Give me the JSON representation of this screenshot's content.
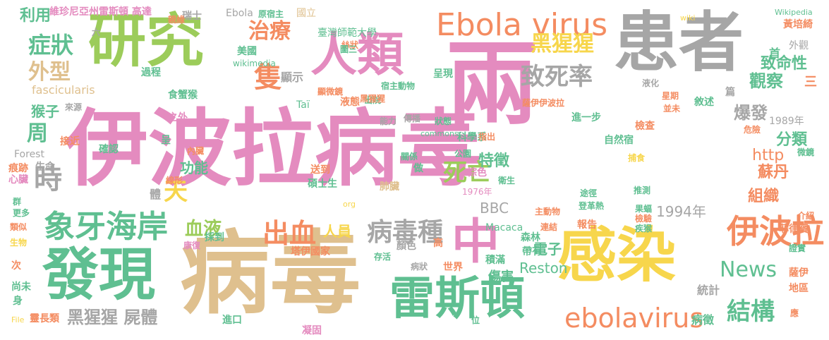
{
  "words": [
    {
      "text": "伊波拉病毒",
      "color": "#e48bbf"
    },
    {
      "text": "病毒",
      "color": "#dfc08e"
    },
    {
      "text": "兩",
      "color": "#e48bbf"
    },
    {
      "text": "患者",
      "color": "#a6a6a6"
    },
    {
      "text": "研究",
      "color": "#9ccc5a"
    },
    {
      "text": "感染",
      "color": "#f7d64c"
    },
    {
      "text": "發現",
      "color": "#5fbf91"
    },
    {
      "text": "人類",
      "color": "#e48bbf"
    },
    {
      "text": "雷斯頓",
      "color": "#5fbf91"
    },
    {
      "text": "Ebola virus",
      "color": "#f48c61"
    },
    {
      "text": "中",
      "color": "#e48bbf"
    },
    {
      "text": "伊波拉",
      "color": "#f48c61"
    },
    {
      "text": "象牙海岸",
      "color": "#5fbf91"
    },
    {
      "text": "出血",
      "color": "#f48c61"
    },
    {
      "text": "病毒種",
      "color": "#a6a6a6"
    },
    {
      "text": "ebolavirus",
      "color": "#f48c61"
    },
    {
      "text": "致死率",
      "color": "#a6a6a6"
    },
    {
      "text": "黑猩猩",
      "color": "#f7d64c"
    },
    {
      "text": "治療",
      "color": "#f48c61"
    },
    {
      "text": "隻",
      "color": "#f48c61"
    },
    {
      "text": "死亡",
      "color": "#9ccc5a"
    },
    {
      "text": "News",
      "color": "#5fbf91"
    },
    {
      "text": "結構",
      "color": "#5fbf91"
    },
    {
      "text": "症狀",
      "color": "#5fbf91"
    },
    {
      "text": "外型",
      "color": "#dfc08e"
    },
    {
      "text": "時",
      "color": "#a6a6a6"
    },
    {
      "text": "天",
      "color": "#f7d64c"
    },
    {
      "text": "周",
      "color": "#5fbf91"
    },
    {
      "text": "黑猩猩 屍體",
      "color": "#a6a6a6"
    },
    {
      "text": "血液",
      "color": "#9ccc5a"
    },
    {
      "text": "人員",
      "color": "#f7d64c"
    },
    {
      "text": "特徵",
      "color": "#5fbf91"
    },
    {
      "text": "致命性",
      "color": "#5fbf91"
    },
    {
      "text": "觀察",
      "color": "#5fbf91"
    },
    {
      "text": "爆發",
      "color": "#a6a6a6"
    },
    {
      "text": "分類",
      "color": "#5fbf91"
    },
    {
      "text": "http",
      "color": "#f48c61"
    },
    {
      "text": "蘇丹",
      "color": "#f48c61"
    },
    {
      "text": "組織",
      "color": "#f48c61"
    },
    {
      "text": "1994年",
      "color": "#a6a6a6"
    },
    {
      "text": "BBC",
      "color": "#a6a6a6"
    },
    {
      "text": "Reston",
      "color": "#5fbf91"
    },
    {
      "text": "傷害",
      "color": "#5fbf91"
    },
    {
      "text": "電子",
      "color": "#5fbf91"
    },
    {
      "text": "猴子",
      "color": "#5fbf91"
    },
    {
      "text": "功能",
      "color": "#5fbf91"
    },
    {
      "text": "利用",
      "color": "#5fbf91"
    },
    {
      "text": "維珍尼亞州雷斯頓 高達",
      "color": "#e48bbf"
    },
    {
      "text": "臺灣師範大學",
      "color": "#5fbf91"
    },
    {
      "text": "國立",
      "color": "#dfc08e"
    },
    {
      "text": "外觀",
      "color": "#a6a6a6"
    },
    {
      "text": "黃培綺",
      "color": "#f48c61"
    },
    {
      "text": "Wikipedia",
      "color": "#5fbf91"
    },
    {
      "text": "fascicularis",
      "color": "#dfc08e"
    },
    {
      "text": "wikimedia",
      "color": "#5fbf91"
    },
    {
      "text": "美國",
      "color": "#5fbf91"
    },
    {
      "text": "顯示",
      "color": "#a6a6a6"
    },
    {
      "text": "1989年",
      "color": "#a6a6a6"
    },
    {
      "text": "塔伊國家",
      "color": "#f48c61"
    },
    {
      "text": "碩士生",
      "color": "#5fbf91"
    },
    {
      "text": "1976年",
      "color": "#e48bbf"
    },
    {
      "text": "Macaca",
      "color": "#5fbf91"
    },
    {
      "text": "肺臟",
      "color": "#dfc08e"
    },
    {
      "text": "統計",
      "color": "#a6a6a6"
    },
    {
      "text": "地區",
      "color": "#f48c61"
    },
    {
      "text": "薩伊",
      "color": "#f48c61"
    },
    {
      "text": "菲律賓",
      "color": "#f48c61"
    },
    {
      "text": "病徵",
      "color": "#5fbf91"
    },
    {
      "text": "進口",
      "color": "#5fbf91"
    },
    {
      "text": "凝固",
      "color": "#e48bbf"
    },
    {
      "text": "靈長類",
      "color": "#f48c61"
    },
    {
      "text": "森林",
      "color": "#5fbf91"
    },
    {
      "text": "積滿",
      "color": "#5fbf91"
    },
    {
      "text": "世界",
      "color": "#f48c61"
    },
    {
      "text": "帶有",
      "color": "#5fbf91"
    },
    {
      "text": "報告",
      "color": "#f48c61"
    },
    {
      "text": "康復",
      "color": "#e48bbf"
    },
    {
      "text": "採到",
      "color": "#5fbf91"
    },
    {
      "text": "內臟",
      "color": "#f48c61"
    },
    {
      "text": "確認",
      "color": "#5fbf91"
    },
    {
      "text": "生命",
      "color": "#a6a6a6"
    },
    {
      "text": "痕跡",
      "color": "#f48c61"
    },
    {
      "text": "心臟",
      "color": "#e48bbf"
    },
    {
      "text": "Forest",
      "color": "#a6a6a6"
    },
    {
      "text": "接近",
      "color": "#f48c61"
    },
    {
      "text": "來源",
      "color": "#a6a6a6"
    },
    {
      "text": "食蟹猴",
      "color": "#5fbf91"
    },
    {
      "text": "過程",
      "color": "#5fbf91"
    },
    {
      "text": "顯微鏡",
      "color": "#f48c61"
    },
    {
      "text": "宿主動物",
      "color": "#5fbf91"
    },
    {
      "text": "薩伊伊波拉",
      "color": "#f48c61"
    },
    {
      "text": "進一步",
      "color": "#5fbf91"
    },
    {
      "text": "危險",
      "color": "#f48c61"
    },
    {
      "text": "星期",
      "color": "#f48c61"
    },
    {
      "text": "並未",
      "color": "#f48c61"
    },
    {
      "text": "檢查",
      "color": "#f48c61"
    },
    {
      "text": "自然宿",
      "color": "#5fbf91"
    },
    {
      "text": "捕食",
      "color": "#f7d64c"
    },
    {
      "text": "推測",
      "color": "#5fbf91"
    },
    {
      "text": "途徑",
      "color": "#5fbf91"
    },
    {
      "text": "登革熱",
      "color": "#5fbf91"
    },
    {
      "text": "主動物",
      "color": "#f48c61"
    },
    {
      "text": "連結",
      "color": "#f48c61"
    },
    {
      "text": "疾猴",
      "color": "#5fbf91"
    },
    {
      "text": "果蝠",
      "color": "#5fbf91"
    },
    {
      "text": "檢驗",
      "color": "#f48c61"
    },
    {
      "text": "微鏡",
      "color": "#5fbf91"
    },
    {
      "text": "介紹",
      "color": "#f48c61"
    },
    {
      "text": "尚未",
      "color": "#5fbf91"
    },
    {
      "text": "身",
      "color": "#5fbf91"
    },
    {
      "text": "次",
      "color": "#f48c61"
    },
    {
      "text": "生物",
      "color": "#f7d64c"
    },
    {
      "text": "類似",
      "color": "#f48c61"
    },
    {
      "text": "更多",
      "color": "#5fbf91"
    },
    {
      "text": "群",
      "color": "#5fbf91"
    },
    {
      "text": "Ebola",
      "color": "#a6a6a6"
    },
    {
      "text": "原宿主",
      "color": "#5fbf91"
    },
    {
      "text": "瑞士",
      "color": "#a6a6a6"
    },
    {
      "text": "絲狀",
      "color": "#f48c61"
    },
    {
      "text": "液態",
      "color": "#f48c61"
    },
    {
      "text": "液化",
      "color": "#a6a6a6"
    },
    {
      "text": "出院",
      "color": "#5fbf91"
    },
    {
      "text": "呈現",
      "color": "#5fbf91"
    },
    {
      "text": "科學系",
      "color": "#5fbf91"
    },
    {
      "text": "公園",
      "color": "#5fbf91"
    },
    {
      "text": "棕色",
      "color": "#e48bbf"
    },
    {
      "text": "指出",
      "color": "#f48c61"
    },
    {
      "text": "狀態",
      "color": "#5fbf91"
    },
    {
      "text": "傳播",
      "color": "#a6a6a6"
    },
    {
      "text": "能力",
      "color": "#a6a6a6"
    },
    {
      "text": "黑猩猩",
      "color": "#f48c61"
    },
    {
      "text": "關係",
      "color": "#5fbf91"
    },
    {
      "text": "送到",
      "color": "#f48c61"
    },
    {
      "text": "衛生",
      "color": "#5fbf91"
    },
    {
      "text": "做",
      "color": "#5fbf91"
    },
    {
      "text": "顏色",
      "color": "#a6a6a6"
    },
    {
      "text": "存活",
      "color": "#5fbf91"
    },
    {
      "text": "病狀",
      "color": "#a6a6a6"
    },
    {
      "text": "高",
      "color": "#f48c61"
    },
    {
      "text": "證實",
      "color": "#5fbf91"
    },
    {
      "text": "應",
      "color": "#f48c61"
    },
    {
      "text": "位",
      "color": "#5fbf91"
    },
    {
      "text": "File",
      "color": "#f7d64c"
    },
    {
      "text": "首",
      "color": "#5fbf91"
    },
    {
      "text": "三",
      "color": "#f48c61"
    },
    {
      "text": "篇",
      "color": "#a6a6a6"
    },
    {
      "text": "敘述",
      "color": "#5fbf91"
    },
    {
      "text": "親緣",
      "color": "#f48c61"
    },
    {
      "text": "圖三",
      "color": "#5fbf91"
    },
    {
      "text": "之外",
      "color": "#e48bbf"
    },
    {
      "text": "呈",
      "color": "#5fbf91"
    },
    {
      "text": "體",
      "color": "#a6a6a6"
    },
    {
      "text": "線形",
      "color": "#f48c61"
    },
    {
      "text": "org",
      "color": "#f7d64c"
    },
    {
      "text": "commons",
      "color": "#5fbf91"
    },
    {
      "text": "Taï",
      "color": "#5fbf91"
    },
    {
      "text": "六",
      "color": "#a6a6a6"
    },
    {
      "text": "wiki",
      "color": "#f7d64c"
    }
  ]
}
